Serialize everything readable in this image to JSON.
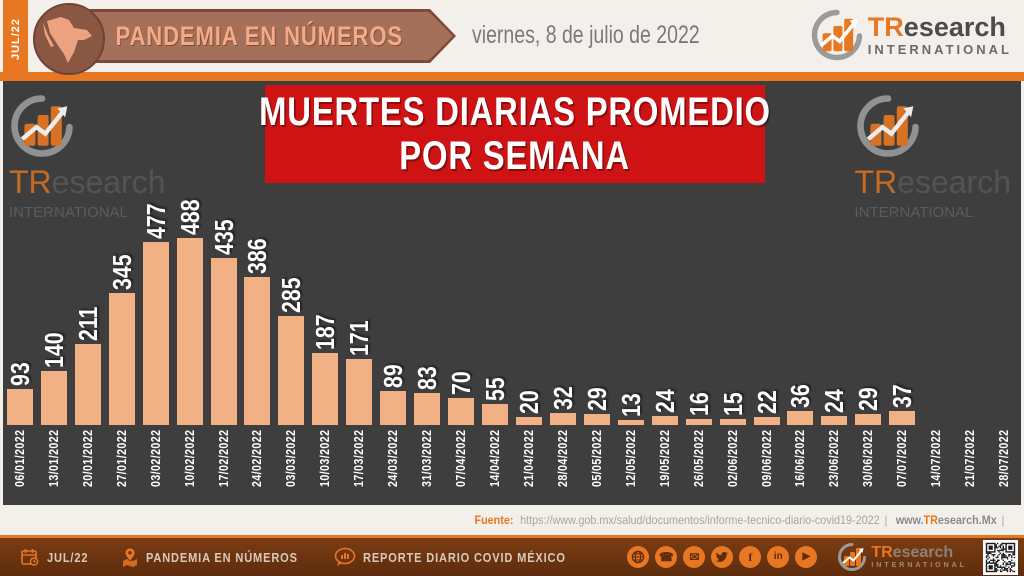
{
  "meta_strip": {
    "label": "JUL/22"
  },
  "header": {
    "program_title": "PANDEMIA EN NÚMEROS",
    "date_text": "viernes, 8 de julio de 2022"
  },
  "brand": {
    "name_prefix": "TR",
    "name_suffix": "esearch",
    "subtitle": "INTERNATIONAL"
  },
  "chart_data": {
    "type": "bar",
    "title": "MUERTES DIARIAS PROMEDIO POR SEMANA",
    "title_lines": [
      "MUERTES DIARIAS PROMEDIO",
      "POR SEMANA"
    ],
    "categories": [
      "06/01/2022",
      "13/01/2022",
      "20/01/2022",
      "27/01/2022",
      "03/02/2022",
      "10/02/2022",
      "17/02/2022",
      "24/02/2022",
      "03/03/2022",
      "10/03/2022",
      "17/03/2022",
      "24/03/2022",
      "31/03/2022",
      "07/04/2022",
      "14/04/2022",
      "21/04/2022",
      "28/04/2022",
      "05/05/2022",
      "12/05/2022",
      "19/05/2022",
      "26/05/2022",
      "02/06/2022",
      "09/06/2022",
      "16/06/2022",
      "23/06/2022",
      "30/06/2022",
      "07/07/2022",
      "14/07/2022",
      "21/07/2022",
      "28/07/2022"
    ],
    "values": [
      93,
      140,
      211,
      345,
      477,
      488,
      435,
      386,
      285,
      187,
      171,
      89,
      83,
      70,
      55,
      20,
      32,
      29,
      13,
      24,
      16,
      15,
      22,
      36,
      24,
      29,
      37,
      null,
      null,
      null
    ],
    "xlabel": "",
    "ylabel": "",
    "ylim": [
      0,
      488
    ],
    "grid": false,
    "legend": "none",
    "bar_color": "#f1b185",
    "background": "#3f3e3e",
    "value_labels": "rotated-90-above-bars"
  },
  "source": {
    "prefix": "Fuente:",
    "url": "https://www.gob.mx/salud/documentos/informe-tecnico-diario-covid19-2022",
    "separator": "|",
    "site_prefix": "www.",
    "site_brand": "TR",
    "site_rest": "esearch.Mx",
    "trailing": "|"
  },
  "footer": {
    "month": "JUL/22",
    "program": "PANDEMIA EN NÚMEROS",
    "report": "REPORTE DIARIO COVID MÉXICO",
    "social": [
      "globe",
      "whatsapp",
      "email",
      "twitter",
      "facebook",
      "linkedin",
      "youtube"
    ]
  },
  "colors": {
    "accent": "#e87722",
    "red_banner": "#cf1315",
    "bar": "#f1b185",
    "chart_bg": "#3f3e3e",
    "footer_bg": "#6b3413",
    "banner_brown": "#a4705a"
  }
}
